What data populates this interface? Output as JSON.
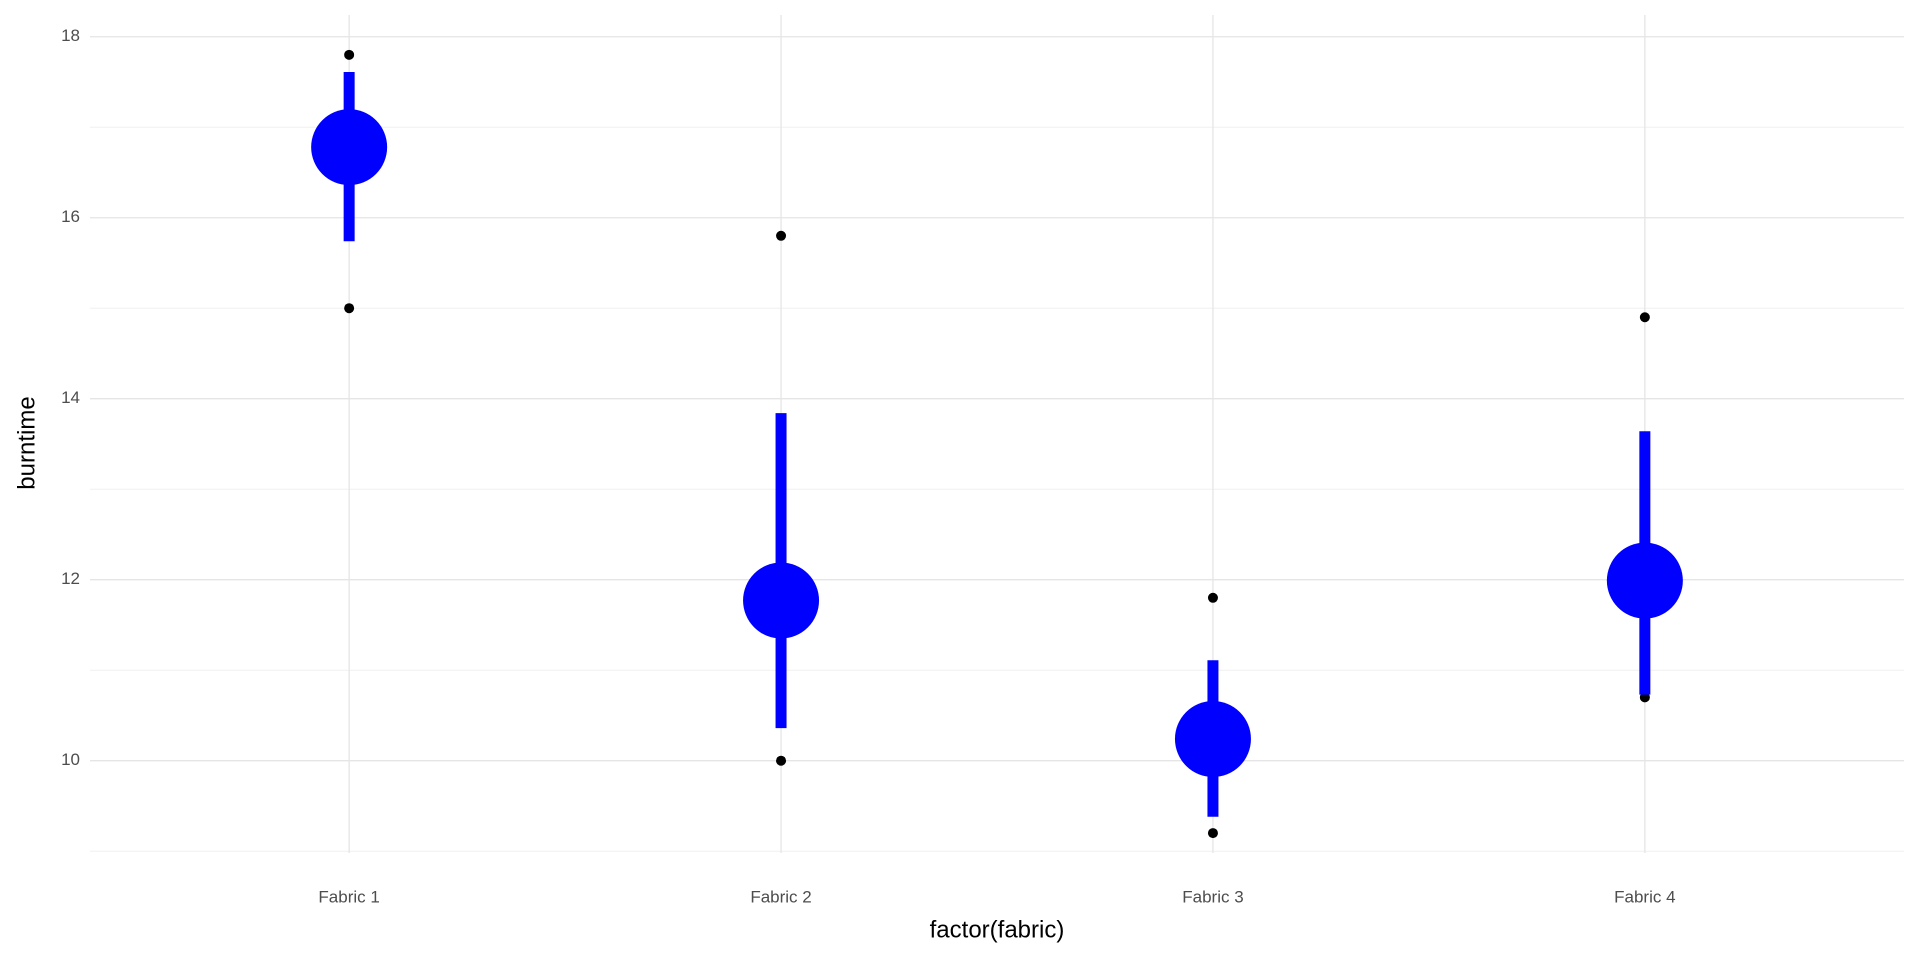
{
  "chart_data": {
    "type": "pointrange",
    "x_label": "factor(fabric)",
    "y_label": "burntime",
    "categories": [
      "Fabric 1",
      "Fabric 2",
      "Fabric 3",
      "Fabric 4"
    ],
    "mean": [
      16.78,
      11.77,
      10.24,
      11.99
    ],
    "ymin": [
      15.74,
      10.36,
      9.38,
      10.73
    ],
    "ymax": [
      17.61,
      13.84,
      11.11,
      13.64
    ],
    "points": [
      [
        17.8,
        15.0
      ],
      [
        15.8,
        10.0
      ],
      [
        11.8,
        9.2
      ],
      [
        14.9,
        10.7
      ]
    ],
    "color": "blue",
    "point_color": "black",
    "ylim": [
      8.98,
      18.24
    ],
    "yticks": [
      10,
      12,
      14,
      16,
      18
    ],
    "yminor": [
      9,
      11,
      13,
      15,
      17
    ],
    "grid": true
  }
}
